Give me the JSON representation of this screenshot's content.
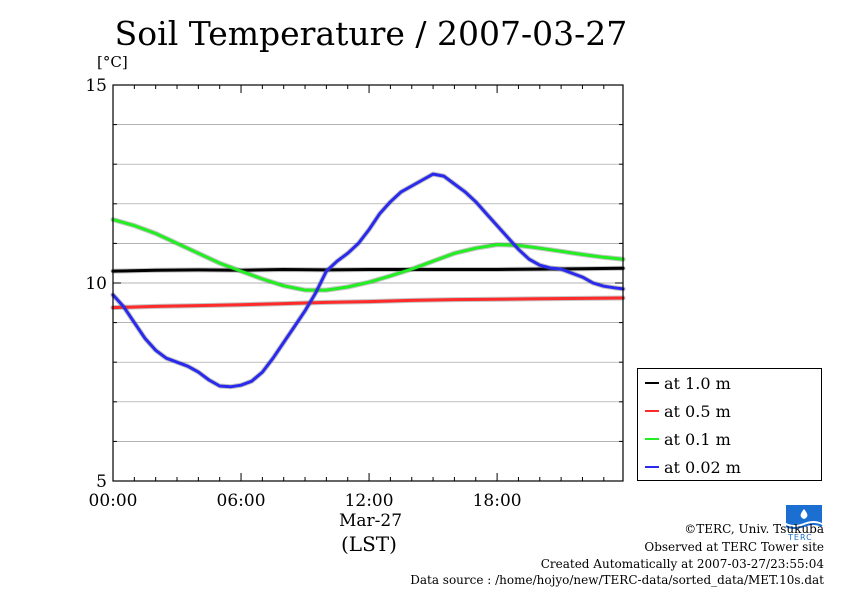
{
  "header": {
    "title": "Soil Temperature / 2007-03-27",
    "unit_label": "[°C]"
  },
  "axis": {
    "x_sub_label": "Mar-27",
    "x_zone_label": "(LST)"
  },
  "footer": {
    "copyright": "©TERC, Univ. Tsukuba",
    "observed": "Observed at TERC Tower site",
    "created": "Created Automatically at 2007-03-27/23:55:04",
    "source": "Data source : /home/hojyo/new/TERC-data/sorted_data/MET.10s.dat"
  },
  "logo": {
    "name": "terc-logo",
    "color": "#1a6fd0",
    "text": "TERC"
  },
  "chart_data": {
    "type": "line",
    "title": "Soil Temperature / 2007-03-27",
    "ylabel": "[°C]",
    "xlabel": "Mar-27 (LST)",
    "xlim": [
      0,
      23.9
    ],
    "ylim": [
      5,
      15
    ],
    "x_ticks": [
      0,
      6,
      12,
      18
    ],
    "x_tick_labels": [
      "00:00",
      "06:00",
      "12:00",
      "18:00"
    ],
    "y_ticks": [
      5,
      10,
      15
    ],
    "y_tick_labels": [
      "5",
      "10",
      "15"
    ],
    "grid_y_step": 1,
    "grid": true,
    "legend_position": "right",
    "series": [
      {
        "name": "at 1.0 m",
        "color": "#000000",
        "x": [
          0,
          2,
          4,
          6,
          8,
          10,
          12,
          14,
          16,
          18,
          20,
          22,
          23.9
        ],
        "values": [
          10.3,
          10.32,
          10.33,
          10.32,
          10.34,
          10.33,
          10.34,
          10.34,
          10.34,
          10.34,
          10.35,
          10.36,
          10.37
        ]
      },
      {
        "name": "at 0.5 m",
        "color": "#ff2a2a",
        "x": [
          0,
          2,
          4,
          6,
          8,
          10,
          12,
          14,
          16,
          18,
          20,
          22,
          23.9
        ],
        "values": [
          9.38,
          9.41,
          9.43,
          9.45,
          9.48,
          9.51,
          9.53,
          9.56,
          9.58,
          9.59,
          9.6,
          9.61,
          9.62
        ]
      },
      {
        "name": "at 0.1 m",
        "color": "#22ee22",
        "x": [
          0,
          1,
          2,
          3,
          4,
          5,
          6,
          7,
          8,
          9,
          10,
          11,
          12,
          13,
          14,
          15,
          16,
          17,
          18,
          19,
          20,
          21,
          22,
          23,
          23.9
        ],
        "values": [
          11.6,
          11.45,
          11.25,
          11.0,
          10.75,
          10.5,
          10.3,
          10.1,
          9.93,
          9.82,
          9.82,
          9.9,
          10.02,
          10.18,
          10.35,
          10.55,
          10.75,
          10.88,
          10.97,
          10.95,
          10.88,
          10.8,
          10.72,
          10.65,
          10.6
        ]
      },
      {
        "name": "at 0.02 m",
        "color": "#2a2aee",
        "x": [
          0,
          0.5,
          1,
          1.5,
          2,
          2.5,
          3,
          3.5,
          4,
          4.5,
          5,
          5.5,
          6,
          6.5,
          7,
          7.5,
          8,
          8.5,
          9,
          9.5,
          10,
          10.5,
          11,
          11.5,
          12,
          12.5,
          13,
          13.5,
          14,
          14.5,
          15,
          15.5,
          16,
          16.5,
          17,
          17.5,
          18,
          18.5,
          19,
          19.5,
          20,
          20.5,
          21,
          21.5,
          22,
          22.5,
          23,
          23.5,
          23.9
        ],
        "values": [
          9.7,
          9.4,
          9.0,
          8.6,
          8.3,
          8.1,
          8.0,
          7.9,
          7.75,
          7.55,
          7.4,
          7.38,
          7.42,
          7.52,
          7.75,
          8.1,
          8.5,
          8.9,
          9.3,
          9.75,
          10.3,
          10.55,
          10.75,
          11.0,
          11.35,
          11.75,
          12.05,
          12.3,
          12.45,
          12.6,
          12.75,
          12.7,
          12.5,
          12.3,
          12.05,
          11.75,
          11.45,
          11.15,
          10.85,
          10.6,
          10.45,
          10.38,
          10.35,
          10.25,
          10.15,
          10.0,
          9.92,
          9.88,
          9.85
        ]
      }
    ]
  }
}
